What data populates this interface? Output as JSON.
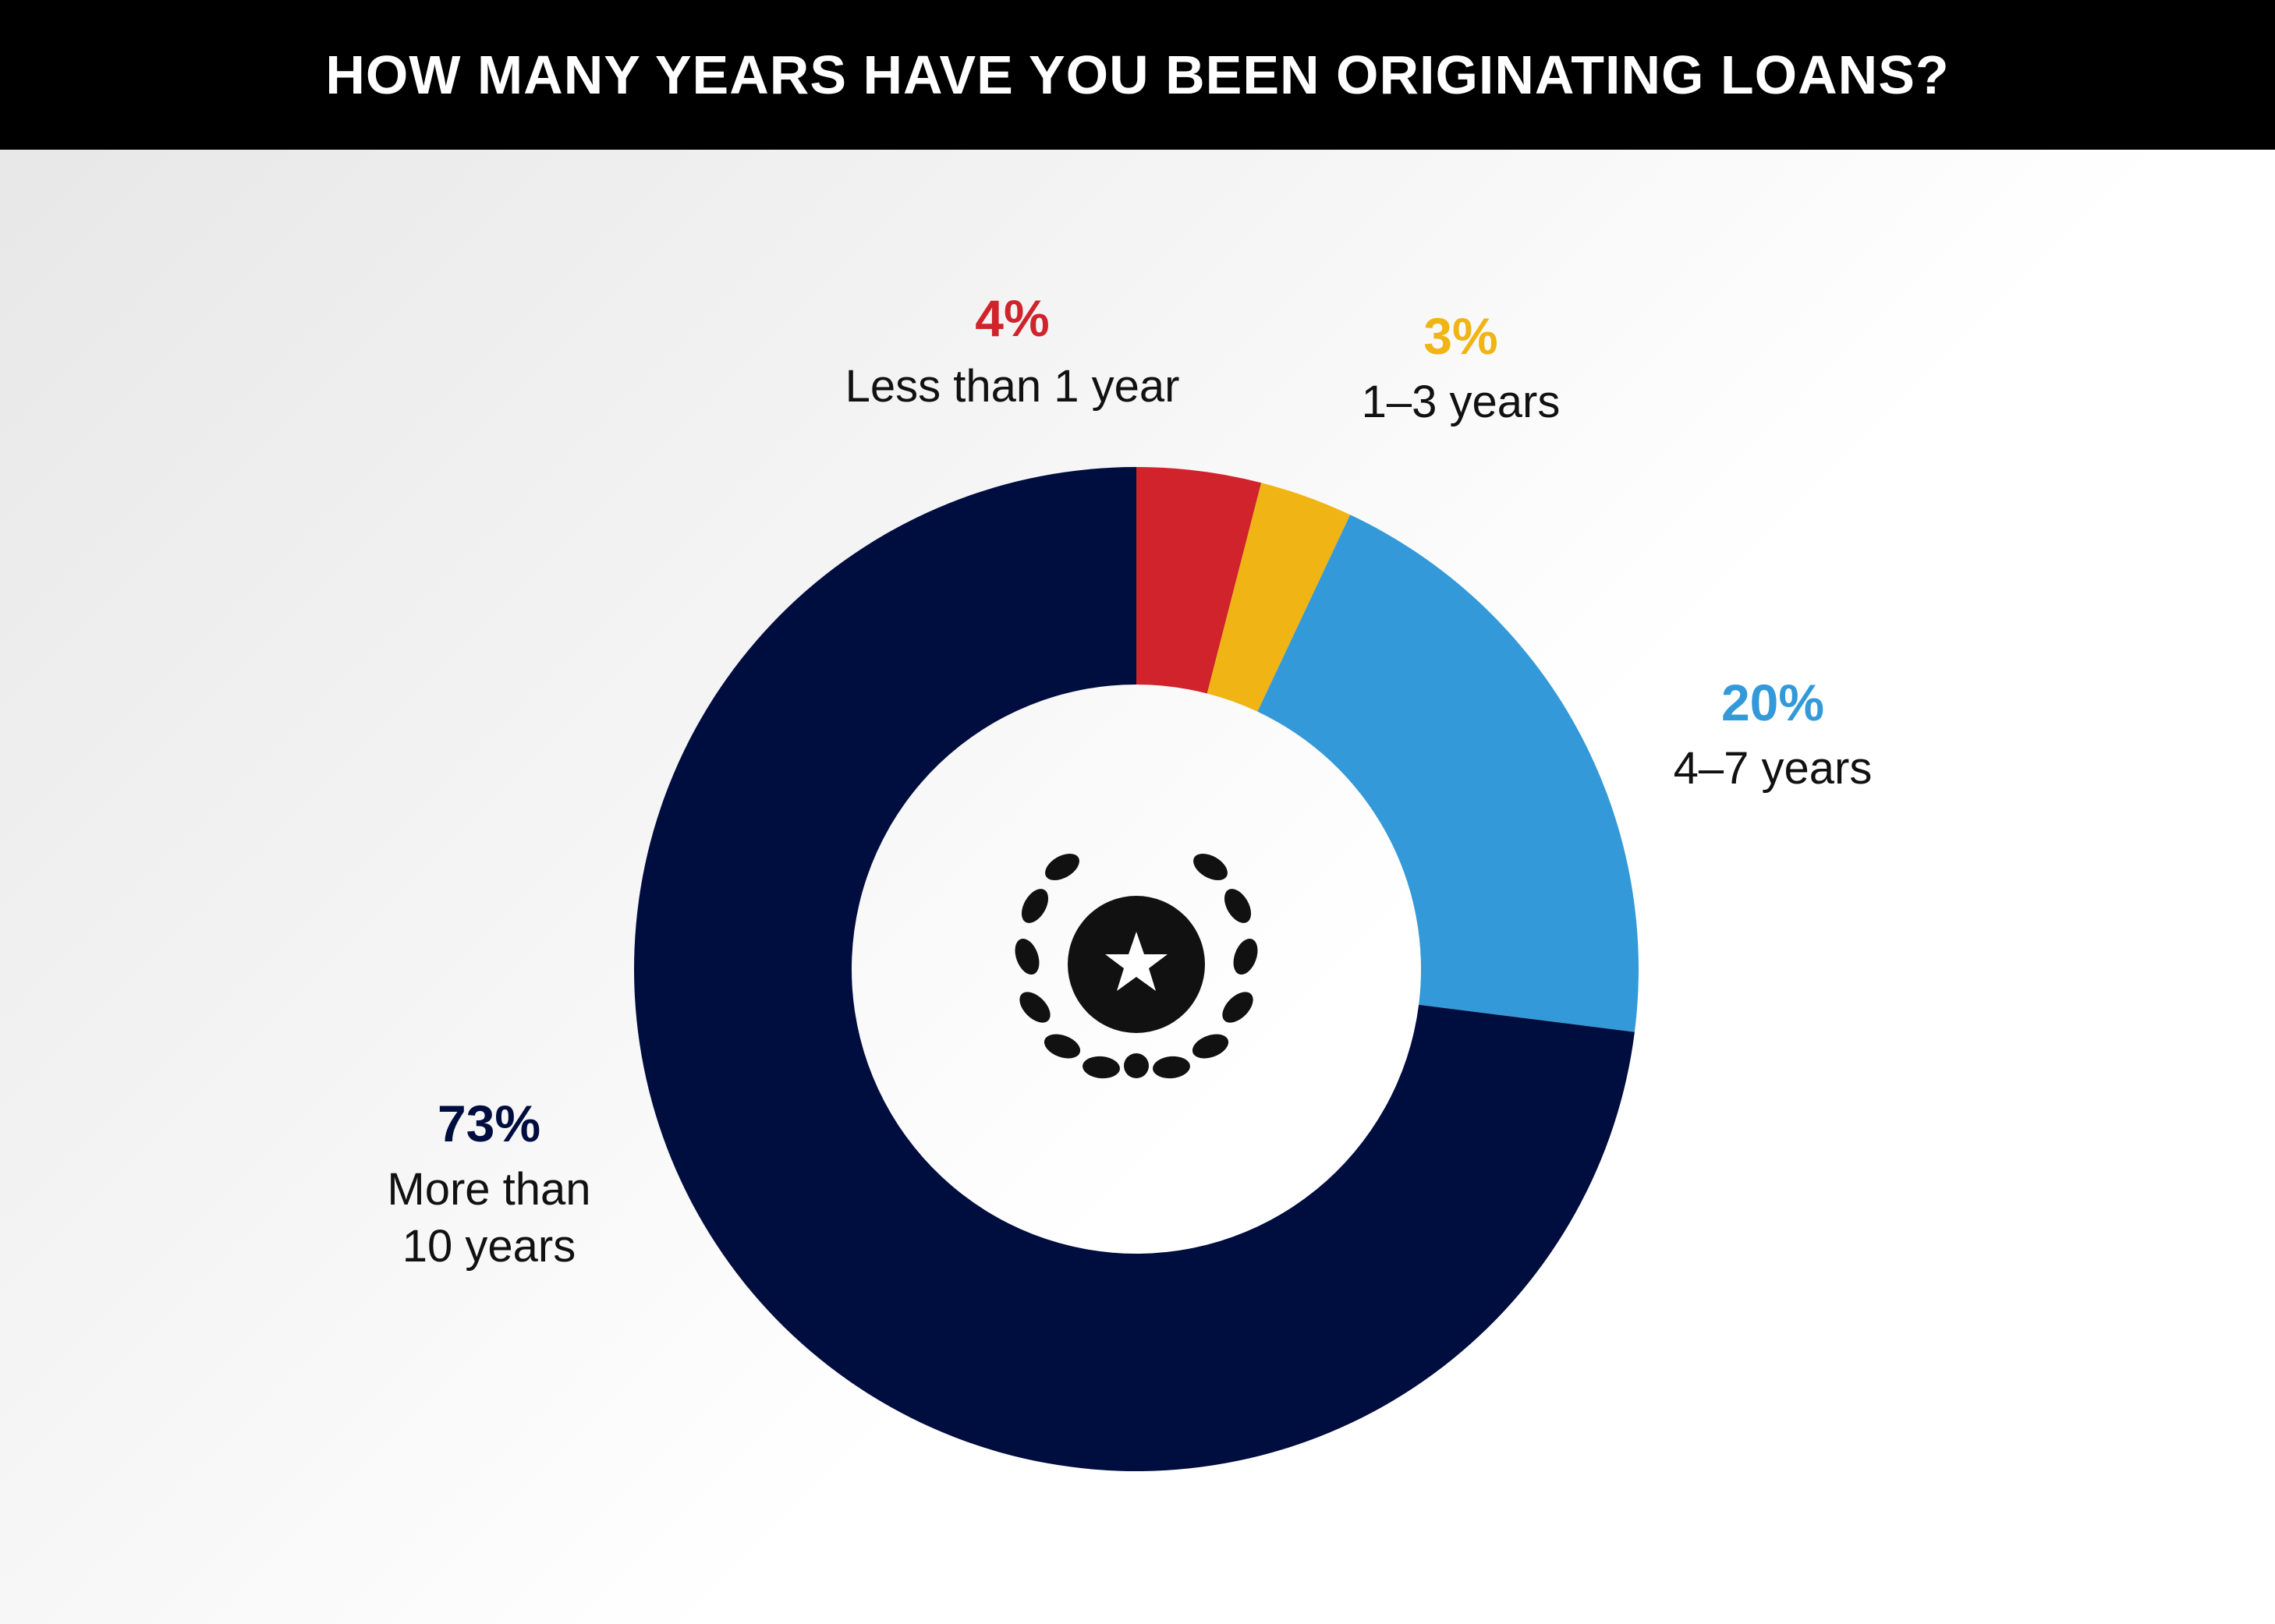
{
  "chart_data": {
    "type": "donut",
    "title": "HOW MANY YEARS HAVE YOU BEEN ORIGINATING LOANS?",
    "categories": [
      "Less than 1 year",
      "1–3 years",
      "4–7 years",
      "More than 10 years"
    ],
    "values": [
      4,
      3,
      20,
      73
    ],
    "value_labels": [
      "4%",
      "3%",
      "20%",
      "73%"
    ],
    "colors": [
      "#d0232b",
      "#f0b414",
      "#3399d8",
      "#000d3f"
    ]
  }
}
